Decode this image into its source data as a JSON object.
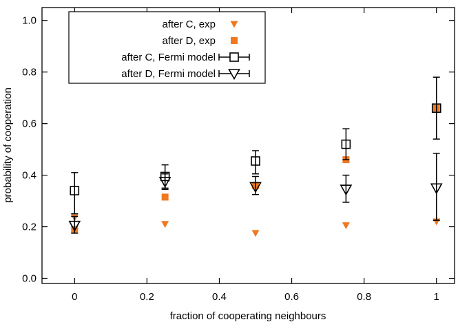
{
  "chart_data": {
    "type": "scatter",
    "xlabel": "fraction of cooperating neighbours",
    "ylabel": "probability of cooperation",
    "xlim": [
      -0.09,
      1.05
    ],
    "ylim": [
      -0.02,
      1.05
    ],
    "x_ticks": [
      0,
      0.2,
      0.4,
      0.6,
      0.8,
      1
    ],
    "x_tick_labels": [
      "0",
      "0.2",
      "0.4",
      "0.6",
      "0.8",
      "1"
    ],
    "y_ticks": [
      0.0,
      0.2,
      0.4,
      0.6,
      0.8,
      1.0
    ],
    "y_tick_labels": [
      "0.0",
      "0.2",
      "0.4",
      "0.6",
      "0.8",
      "1.0"
    ],
    "grid": false,
    "legend_position": "top-left",
    "series": [
      {
        "name": "after C, exp",
        "marker": "filled-triangle-down",
        "color": "#f07820",
        "x": [
          0,
          0.25,
          0.5,
          0.75,
          1.0
        ],
        "y": [
          0.235,
          0.21,
          0.175,
          0.205,
          0.22
        ]
      },
      {
        "name": "after D, exp",
        "marker": "filled-square",
        "color": "#f07820",
        "x": [
          0,
          0.25,
          0.5,
          0.75,
          1.0
        ],
        "y": [
          0.19,
          0.315,
          0.36,
          0.46,
          0.66
        ]
      },
      {
        "name": "after C, Fermi model",
        "marker": "open-square",
        "color": "#000000",
        "x": [
          0,
          0.25,
          0.5,
          0.75,
          1.0
        ],
        "y": [
          0.34,
          0.395,
          0.455,
          0.52,
          0.66
        ],
        "err_low": [
          0.25,
          0.35,
          0.405,
          0.46,
          0.54
        ],
        "err_high": [
          0.41,
          0.44,
          0.495,
          0.58,
          0.78
        ]
      },
      {
        "name": "after D, Fermi model",
        "marker": "open-triangle-down",
        "color": "#000000",
        "x": [
          0,
          0.25,
          0.5,
          0.75,
          1.0
        ],
        "y": [
          0.205,
          0.375,
          0.355,
          0.345,
          0.35
        ],
        "err_low": [
          0.175,
          0.345,
          0.325,
          0.295,
          0.225
        ],
        "err_high": [
          0.24,
          0.405,
          0.395,
          0.4,
          0.485
        ]
      }
    ]
  }
}
